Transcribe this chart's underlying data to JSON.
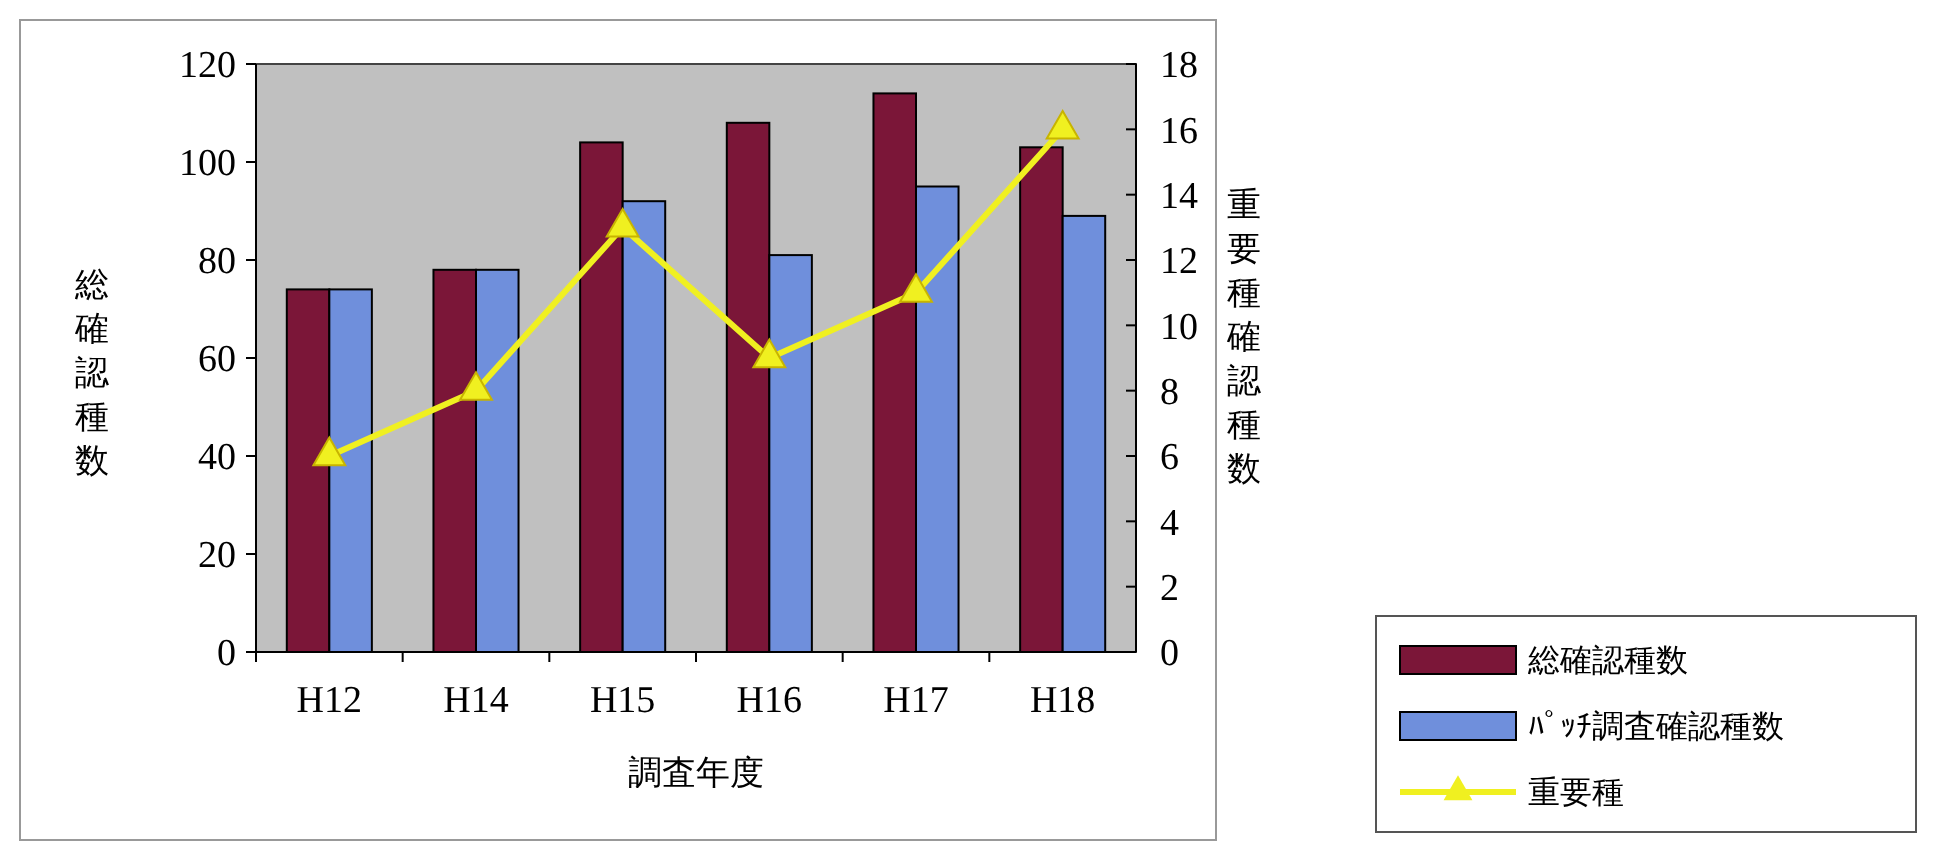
{
  "chart_data": {
    "type": "bar",
    "xlabel": "調査年度",
    "ylabel": "総確認種数",
    "y2label": "重要種確認種数",
    "categories": [
      "H12",
      "H14",
      "H15",
      "H16",
      "H17",
      "H18"
    ],
    "series": [
      {
        "name": "総確認種数",
        "color": "#7b1638",
        "values": [
          74,
          78,
          104,
          108,
          114,
          103
        ]
      },
      {
        "name": "ﾊﾟｯﾁ調査確認種数",
        "color": "#6f8fdc",
        "values": [
          74,
          78,
          92,
          81,
          95,
          89
        ]
      },
      {
        "name": "重要種",
        "type": "line",
        "axis": "y2",
        "color": "#f0f020",
        "marker": "triangle",
        "values": [
          6,
          8,
          13,
          9,
          11,
          16
        ]
      }
    ],
    "ylim": [
      0,
      120
    ],
    "yticks": [
      0,
      20,
      40,
      60,
      80,
      100,
      120
    ],
    "y2lim": [
      0,
      18
    ],
    "y2ticks": [
      0,
      2,
      4,
      6,
      8,
      10,
      12,
      14,
      16,
      18
    ],
    "grid": false,
    "legend": "bottom right"
  }
}
